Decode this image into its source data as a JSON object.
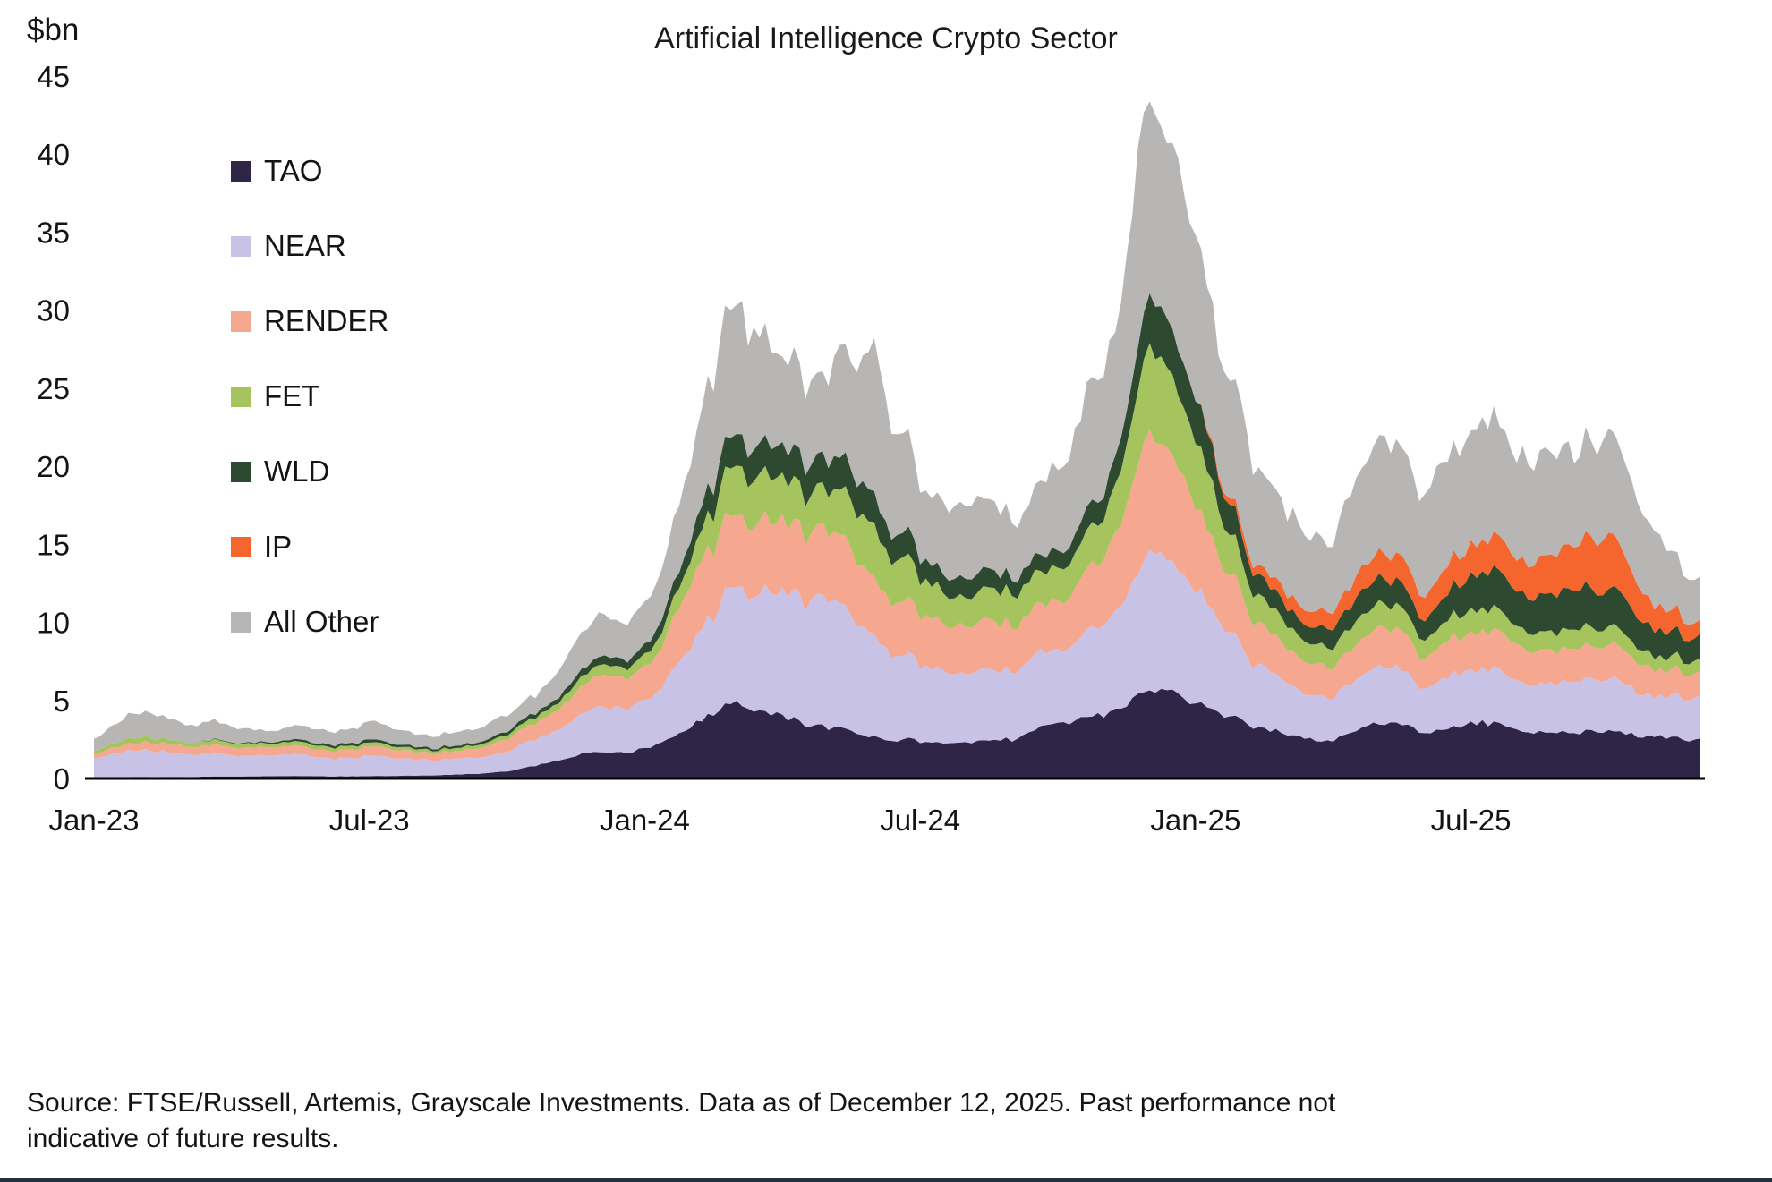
{
  "chart_data": {
    "type": "area",
    "stacked": true,
    "title": "Artificial Intelligence Crypto Sector",
    "y_axis_title": "$bn",
    "ylim": [
      0,
      45
    ],
    "y_ticks": [
      0,
      5,
      10,
      15,
      20,
      25,
      30,
      35,
      40,
      45
    ],
    "x_tick_labels": [
      "Jan-23",
      "Jul-23",
      "Jan-24",
      "Jul-24",
      "Jan-25",
      "Jul-25"
    ],
    "x_tick_month_index": [
      0,
      6,
      12,
      18,
      24,
      30
    ],
    "grid": false,
    "legend_position": "top-left",
    "months": [
      "Jan-23",
      "Feb-23",
      "Mar-23",
      "Apr-23",
      "May-23",
      "Jun-23",
      "Jul-23",
      "Aug-23",
      "Sep-23",
      "Oct-23",
      "Nov-23",
      "Dec-23",
      "Jan-24",
      "Feb-24",
      "Mar-24",
      "Apr-24",
      "May-24",
      "Jun-24",
      "Jul-24",
      "Aug-24",
      "Sep-24",
      "Oct-24",
      "Nov-24",
      "Dec-24",
      "Jan-25",
      "Feb-25",
      "Mar-25",
      "Apr-25",
      "May-25",
      "Jun-25",
      "Jul-25",
      "Aug-25",
      "Sep-25",
      "Oct-25",
      "Nov-25",
      "Dec-25"
    ],
    "series": [
      {
        "name": "TAO",
        "color": "#2e2547",
        "values": [
          0.05,
          0.1,
          0.1,
          0.15,
          0.15,
          0.15,
          0.15,
          0.2,
          0.25,
          0.4,
          1.0,
          1.5,
          1.8,
          3.0,
          4.5,
          3.5,
          3.0,
          2.8,
          2.5,
          2.2,
          2.5,
          3.5,
          4.0,
          5.0,
          4.5,
          3.5,
          2.5,
          2.2,
          3.5,
          3.0,
          3.2,
          3.0,
          3.0,
          3.2,
          2.8,
          2.5
        ]
      },
      {
        "name": "NEAR",
        "color": "#c7c2e6",
        "values": [
          1.3,
          1.8,
          1.6,
          1.5,
          1.3,
          1.2,
          1.3,
          1.1,
          1.0,
          1.1,
          1.8,
          2.5,
          3.0,
          4.5,
          7.0,
          7.0,
          7.5,
          7.0,
          5.5,
          4.5,
          4.5,
          4.5,
          5.5,
          8.0,
          7.0,
          4.5,
          3.0,
          2.5,
          3.5,
          3.0,
          3.2,
          3.0,
          3.2,
          3.5,
          2.8,
          2.8
        ]
      },
      {
        "name": "RENDER",
        "color": "#f6a78f",
        "values": [
          0.3,
          0.5,
          0.5,
          0.6,
          0.5,
          0.5,
          0.6,
          0.5,
          0.5,
          0.7,
          1.2,
          1.8,
          2.0,
          3.5,
          4.5,
          4.0,
          4.0,
          4.0,
          3.5,
          3.0,
          3.0,
          3.0,
          4.0,
          7.0,
          5.0,
          3.0,
          2.0,
          1.8,
          2.5,
          2.0,
          2.2,
          2.2,
          2.2,
          2.3,
          1.8,
          1.5
        ]
      },
      {
        "name": "FET",
        "color": "#a6c45e",
        "values": [
          0.2,
          0.4,
          0.3,
          0.3,
          0.25,
          0.25,
          0.25,
          0.2,
          0.2,
          0.25,
          0.4,
          0.6,
          0.7,
          1.5,
          3.0,
          2.5,
          2.2,
          3.5,
          2.5,
          1.8,
          2.0,
          2.0,
          2.5,
          5.0,
          4.0,
          2.0,
          1.3,
          1.2,
          1.5,
          1.2,
          1.3,
          1.2,
          1.2,
          1.2,
          0.9,
          0.8
        ]
      },
      {
        "name": "WLD",
        "color": "#2d4a30",
        "values": [
          0,
          0,
          0,
          0.05,
          0.1,
          0.15,
          0.2,
          0.15,
          0.15,
          0.2,
          0.3,
          0.5,
          0.6,
          1.2,
          2.0,
          1.8,
          1.8,
          2.2,
          1.5,
          1.2,
          1.0,
          1.0,
          1.5,
          3.0,
          2.5,
          1.5,
          1.0,
          1.0,
          1.5,
          1.3,
          2.0,
          2.2,
          2.5,
          2.5,
          1.8,
          1.5
        ]
      },
      {
        "name": "IP",
        "color": "#f4662e",
        "values": [
          0,
          0,
          0,
          0,
          0,
          0,
          0,
          0,
          0,
          0,
          0,
          0,
          0,
          0,
          0,
          0,
          0,
          0,
          0,
          0,
          0,
          0,
          0,
          0,
          0,
          0.5,
          0.8,
          1.0,
          1.5,
          1.5,
          1.8,
          2.0,
          2.5,
          3.5,
          1.5,
          1.0
        ]
      },
      {
        "name": "All Other",
        "color": "#b7b6b5",
        "values": [
          0.8,
          1.5,
          1.2,
          1.2,
          0.9,
          0.9,
          1.0,
          0.8,
          0.8,
          0.9,
          1.3,
          2.1,
          2.4,
          4.0,
          8.5,
          5.5,
          5.0,
          9.0,
          5.5,
          4.5,
          4.5,
          5.5,
          7.5,
          12.5,
          10.0,
          7.0,
          4.5,
          4.0,
          7.0,
          6.0,
          7.3,
          6.5,
          6.5,
          6.5,
          4.5,
          2.5
        ]
      }
    ]
  },
  "footer": {
    "source_note": "Source: FTSE/Russell, Artemis, Grayscale Investments. Data as of December 12, 2025. Past performance not indicative of future results."
  }
}
